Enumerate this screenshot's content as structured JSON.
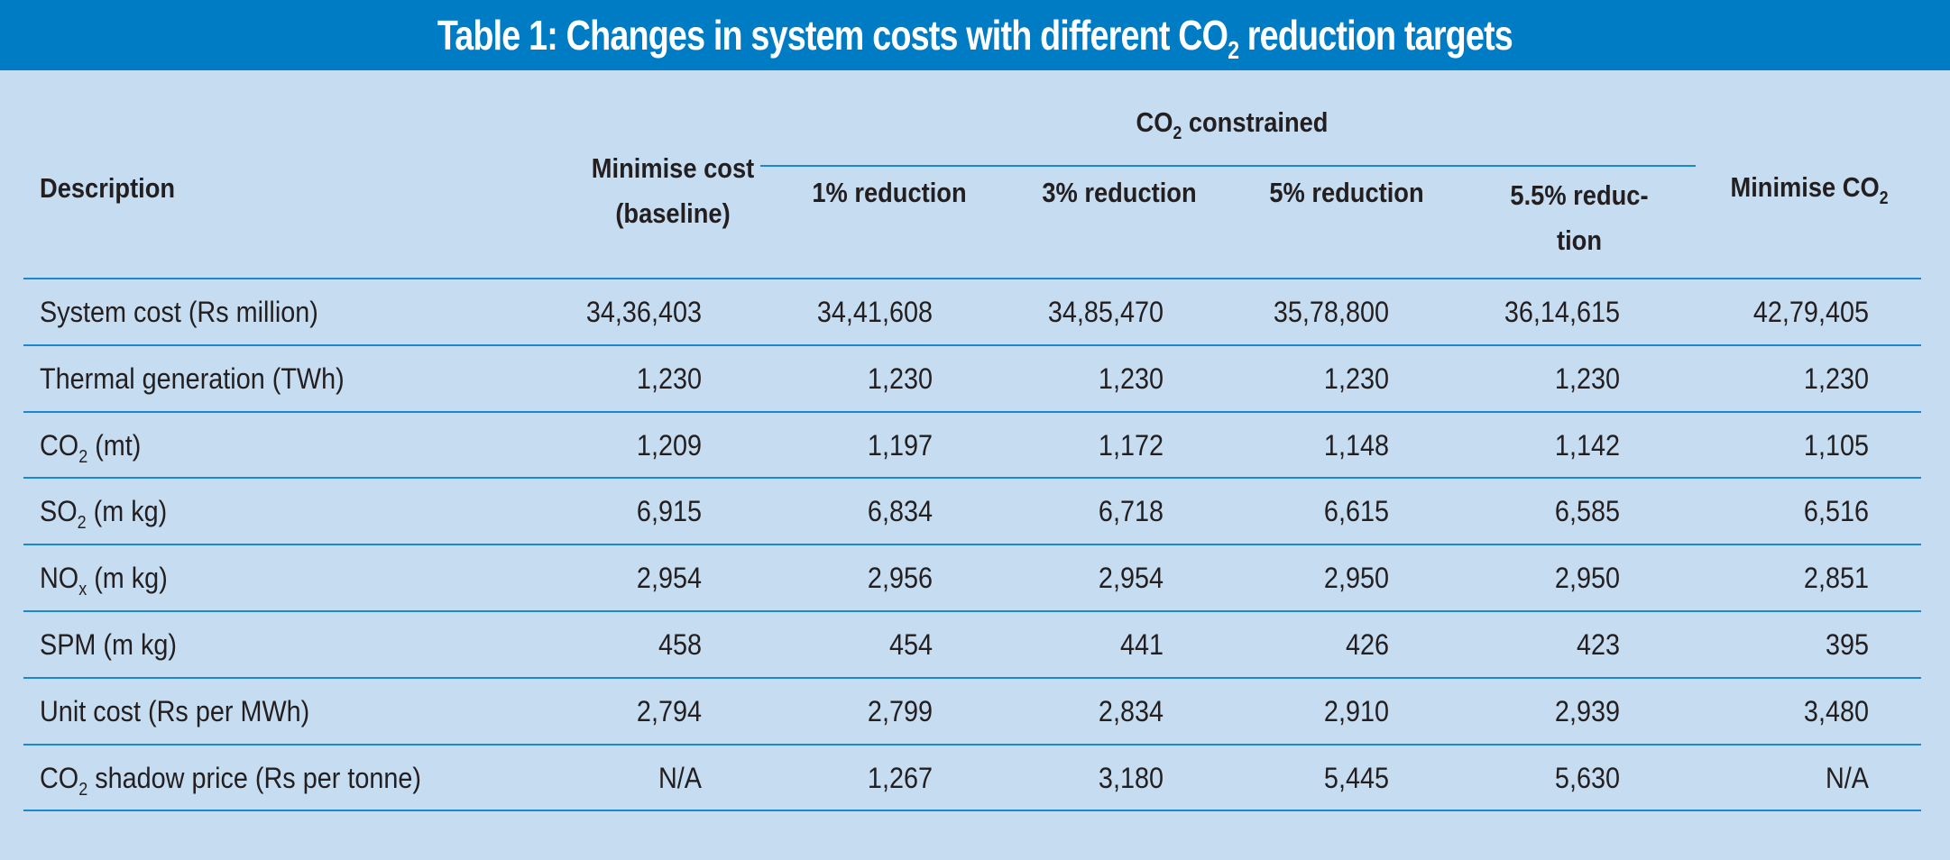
{
  "title": {
    "prefix": "Table 1: Changes in system costs with different CO",
    "sub": "2",
    "suffix": " reduction targets"
  },
  "colors": {
    "title_bar": "#007cc5",
    "background": "#c6dcf0",
    "rules": "#1a87cf",
    "text": "#231f20"
  },
  "headers": {
    "description": "Description",
    "baseline_line1": "Minimise cost",
    "baseline_line2": "(baseline)",
    "group": {
      "prefix": "CO",
      "sub": "2",
      "suffix": " constrained"
    },
    "col_1pct": "1% reduction",
    "col_3pct": "3% reduction",
    "col_5pct": "5% reduction",
    "col_55pct_line1": "5.5% reduc-",
    "col_55pct_line2": "tion",
    "min_co2": {
      "prefix": "Minimise CO",
      "sub": "2"
    }
  },
  "rows": [
    {
      "label": {
        "prefix": "System cost (Rs million)",
        "sub": "",
        "suffix": ""
      },
      "values": [
        "34,36,403",
        "34,41,608",
        "34,85,470",
        "35,78,800",
        "36,14,615",
        "42,79,405"
      ]
    },
    {
      "label": {
        "prefix": "Thermal generation (TWh)",
        "sub": "",
        "suffix": ""
      },
      "values": [
        "1,230",
        "1,230",
        "1,230",
        "1,230",
        "1,230",
        "1,230"
      ]
    },
    {
      "label": {
        "prefix": "CO",
        "sub": "2",
        "suffix": " (mt)"
      },
      "values": [
        "1,209",
        "1,197",
        "1,172",
        "1,148",
        "1,142",
        "1,105"
      ]
    },
    {
      "label": {
        "prefix": "SO",
        "sub": "2",
        "suffix": " (m kg)"
      },
      "values": [
        "6,915",
        "6,834",
        "6,718",
        "6,615",
        "6,585",
        "6,516"
      ]
    },
    {
      "label": {
        "prefix": "NO",
        "sub": "x",
        "suffix": " (m kg)"
      },
      "values": [
        "2,954",
        "2,956",
        "2,954",
        "2,950",
        "2,950",
        "2,851"
      ]
    },
    {
      "label": {
        "prefix": "SPM (m kg)",
        "sub": "",
        "suffix": ""
      },
      "values": [
        "458",
        "454",
        "441",
        "426",
        "423",
        "395"
      ]
    },
    {
      "label": {
        "prefix": "Unit cost (Rs per MWh)",
        "sub": "",
        "suffix": ""
      },
      "values": [
        "2,794",
        "2,799",
        "2,834",
        "2,910",
        "2,939",
        "3,480"
      ]
    },
    {
      "label": {
        "prefix": "CO",
        "sub": "2",
        "suffix": " shadow price (Rs per tonne)"
      },
      "values": [
        "N/A",
        "1,267",
        "3,180",
        "5,445",
        "5,630",
        "N/A"
      ]
    }
  ]
}
